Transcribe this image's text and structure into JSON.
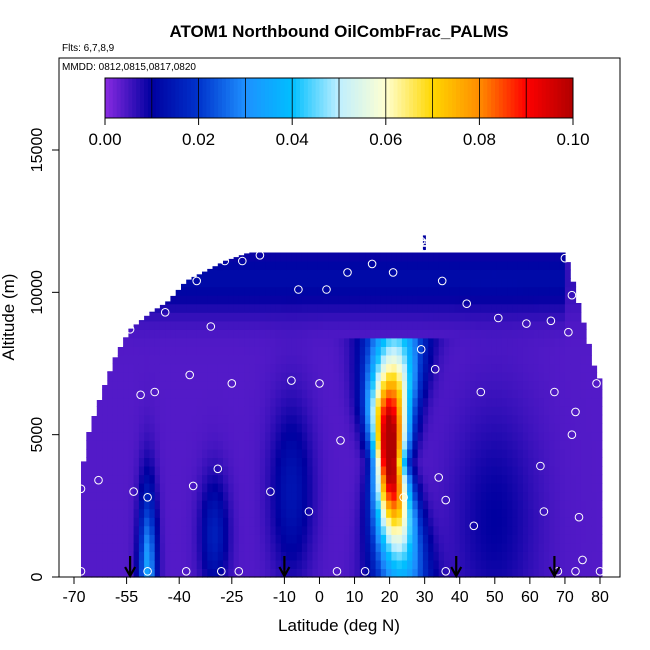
{
  "chart_data": {
    "type": "heatmap",
    "title": "ATOM1 Northbound OilCombFrac_PALMS",
    "flights_note": "Flts: 6,7,8,9",
    "dates_note": "MMDD: 0812,0815,0817,0820",
    "xlabel": "Latitude (deg N)",
    "ylabel": "Altitude (m)",
    "xlim": [
      -70,
      80
    ],
    "ylim": [
      0,
      17800
    ],
    "x_ticks": [
      -70,
      -55,
      -40,
      -25,
      -10,
      0,
      10,
      20,
      30,
      40,
      50,
      60,
      70,
      80
    ],
    "y_ticks": [
      0,
      5000,
      10000,
      15000
    ],
    "colorbar": {
      "min": 0.0,
      "max": 0.1,
      "ticks": [
        0.0,
        0.02,
        0.04,
        0.06,
        0.08,
        0.1
      ],
      "tick_labels": [
        "0.00",
        "0.02",
        "0.04",
        "0.06",
        "0.08",
        "0.10"
      ],
      "colors": [
        "#8a2be2",
        "#0000a0",
        "#0033cc",
        "#1e90ff",
        "#00bfff",
        "#bfefff",
        "#ffffd0",
        "#ffd700",
        "#ff8c00",
        "#ff0000",
        "#b00000"
      ]
    },
    "profile_markers_lat": [
      -54,
      -10,
      39,
      67
    ],
    "sample_points": [
      {
        "lat": -68,
        "alt": 200
      },
      {
        "lat": -68,
        "alt": 3100
      },
      {
        "lat": -63,
        "alt": 3400
      },
      {
        "lat": -53,
        "alt": 3000
      },
      {
        "lat": -49,
        "alt": 2800
      },
      {
        "lat": -49,
        "alt": 200
      },
      {
        "lat": -51,
        "alt": 6400
      },
      {
        "lat": -47,
        "alt": 6500
      },
      {
        "lat": -54,
        "alt": 8700
      },
      {
        "lat": -44,
        "alt": 9300
      },
      {
        "lat": -37,
        "alt": 7100
      },
      {
        "lat": -35,
        "alt": 10400
      },
      {
        "lat": -31,
        "alt": 8800
      },
      {
        "lat": -27,
        "alt": 11100
      },
      {
        "lat": -22,
        "alt": 11100
      },
      {
        "lat": -17,
        "alt": 11300
      },
      {
        "lat": -25,
        "alt": 6800
      },
      {
        "lat": -29,
        "alt": 3800
      },
      {
        "lat": -36,
        "alt": 3200
      },
      {
        "lat": -14,
        "alt": 3000
      },
      {
        "lat": -28,
        "alt": 200
      },
      {
        "lat": -23,
        "alt": 200
      },
      {
        "lat": -38,
        "alt": 200
      },
      {
        "lat": -6,
        "alt": 10100
      },
      {
        "lat": 2,
        "alt": 10100
      },
      {
        "lat": -8,
        "alt": 6900
      },
      {
        "lat": 0,
        "alt": 6800
      },
      {
        "lat": 6,
        "alt": 4800
      },
      {
        "lat": -3,
        "alt": 2300
      },
      {
        "lat": 5,
        "alt": 200
      },
      {
        "lat": 8,
        "alt": 10700
      },
      {
        "lat": 15,
        "alt": 11000
      },
      {
        "lat": 21,
        "alt": 10700
      },
      {
        "lat": 13,
        "alt": 200
      },
      {
        "lat": 29,
        "alt": 11800
      },
      {
        "lat": 29,
        "alt": 8000
      },
      {
        "lat": 33,
        "alt": 7300
      },
      {
        "lat": 34,
        "alt": 3500
      },
      {
        "lat": 36,
        "alt": 2700
      },
      {
        "lat": 24,
        "alt": 2800
      },
      {
        "lat": 35,
        "alt": 10400
      },
      {
        "lat": 42,
        "alt": 9600
      },
      {
        "lat": 46,
        "alt": 6500
      },
      {
        "lat": 44,
        "alt": 1800
      },
      {
        "lat": 51,
        "alt": 9100
      },
      {
        "lat": 59,
        "alt": 8900
      },
      {
        "lat": 66,
        "alt": 9000
      },
      {
        "lat": 63,
        "alt": 3900
      },
      {
        "lat": 64,
        "alt": 2300
      },
      {
        "lat": 67,
        "alt": 6500
      },
      {
        "lat": 70,
        "alt": 11200
      },
      {
        "lat": 72,
        "alt": 9900
      },
      {
        "lat": 71,
        "alt": 8600
      },
      {
        "lat": 72,
        "alt": 5000
      },
      {
        "lat": 73,
        "alt": 5800
      },
      {
        "lat": 79,
        "alt": 6800
      },
      {
        "lat": 74,
        "alt": 2100
      },
      {
        "lat": 75,
        "alt": 600
      },
      {
        "lat": 73,
        "alt": 200
      },
      {
        "lat": 68,
        "alt": 200
      },
      {
        "lat": 80,
        "alt": 200
      },
      {
        "lat": 36,
        "alt": 200
      },
      {
        "lat": 30,
        "alt": 11600
      }
    ]
  }
}
